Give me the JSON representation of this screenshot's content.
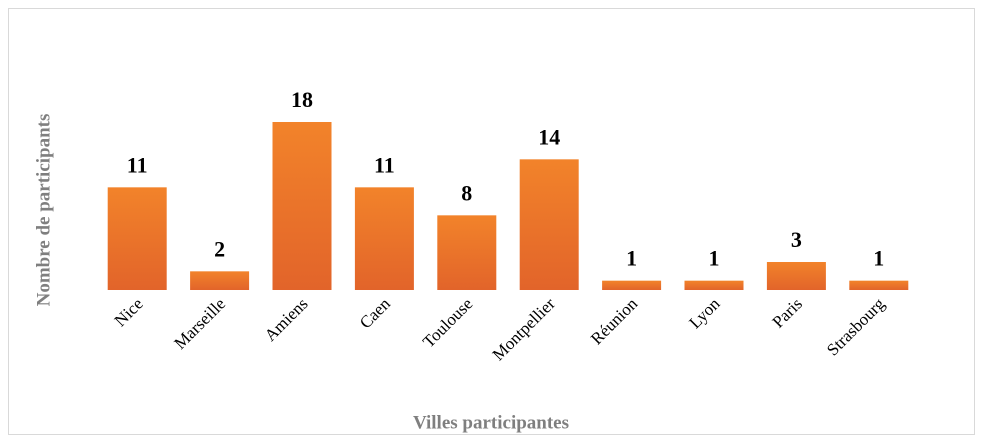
{
  "chart_data": {
    "type": "bar",
    "x_label": "Villes participantes",
    "y_label": "Nombre de participants",
    "categories": [
      "Nice",
      "Marseille",
      "Amiens",
      "Caen",
      "Toulouse",
      "Montpellier",
      "Réunion",
      "Lyon",
      "Paris",
      "Strasbourg"
    ],
    "values": [
      11,
      2,
      18,
      11,
      8,
      14,
      1,
      1,
      3,
      1
    ],
    "color": "#ec7a2a"
  }
}
